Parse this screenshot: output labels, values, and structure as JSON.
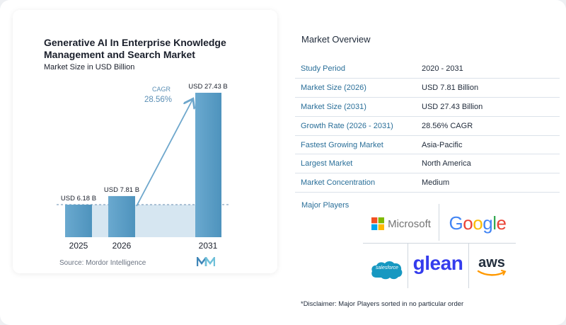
{
  "chart_data": {
    "type": "bar",
    "title": "Generative AI In Enterprise Knowledge Management and Search Market",
    "subtitle": "Market Size in USD Billion",
    "categories": [
      "2025",
      "2026",
      "2031"
    ],
    "values": [
      6.18,
      7.81,
      27.43
    ],
    "value_labels": [
      "USD 6.18 B",
      "USD 7.81 B",
      "USD 27.43 B"
    ],
    "cagr_label": "CAGR",
    "cagr_value": "28.56%",
    "ylim": [
      0,
      30
    ],
    "colors": {
      "bar": "#5b9ec4",
      "bar_light": "#8fbfdb",
      "band": "#d6e6f1",
      "arrow": "#6ea7cc",
      "cagr_text": "#5b8fb5"
    }
  },
  "source": "Source:  Mordor Intelligence",
  "overview": {
    "title": "Market Overview",
    "rows": [
      {
        "key": "Study Period",
        "value": "2020 - 2031"
      },
      {
        "key": "Market Size (2026)",
        "value": "USD 7.81 Billion"
      },
      {
        "key": "Market Size (2031)",
        "value": "USD 27.43 Billion"
      },
      {
        "key": "Growth Rate (2026 - 2031)",
        "value": "28.56% CAGR"
      },
      {
        "key": "Fastest Growing Market",
        "value": "Asia-Pacific"
      },
      {
        "key": "Largest Market",
        "value": "North America"
      },
      {
        "key": "Market Concentration",
        "value": "Medium"
      }
    ]
  },
  "players": {
    "label": "Major Players",
    "logos": {
      "microsoft": "Microsoft",
      "google": "Google",
      "salesforce": "salesforce",
      "glean": "glean",
      "aws": "aws"
    }
  },
  "disclaimer": "*Disclaimer: Major Players sorted in no particular order"
}
